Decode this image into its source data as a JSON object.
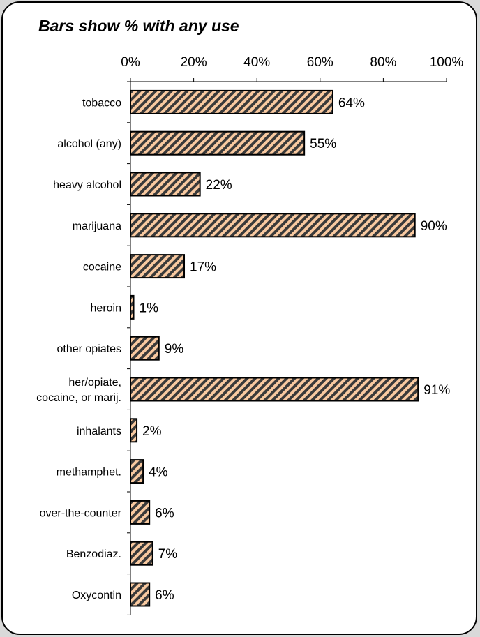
{
  "chart_data": {
    "type": "bar",
    "orientation": "horizontal",
    "title": "Bars show % with any use",
    "xlabel": "",
    "ylabel": "",
    "xlim": [
      0,
      100
    ],
    "x_ticks": [
      "0%",
      "20%",
      "40%",
      "60%",
      "80%",
      "100%"
    ],
    "x_tick_values": [
      0,
      20,
      40,
      60,
      80,
      100
    ],
    "categories": [
      [
        "tobacco"
      ],
      [
        "alcohol  (any)"
      ],
      [
        "heavy alcohol"
      ],
      [
        "marijuana"
      ],
      [
        "cocaine"
      ],
      [
        "heroin"
      ],
      [
        "other opiates"
      ],
      [
        "her/opiate,",
        "cocaine, or marij."
      ],
      [
        "inhalants"
      ],
      [
        "methamphet."
      ],
      [
        "over-the-counter"
      ],
      [
        "Benzodiaz."
      ],
      [
        "Oxycontin"
      ]
    ],
    "values": [
      64,
      55,
      22,
      90,
      17,
      1,
      9,
      91,
      2,
      4,
      6,
      7,
      6
    ],
    "data_labels": [
      "64%",
      "55%",
      "22%",
      "90%",
      "17%",
      "1%",
      "9%",
      "91%",
      "2%",
      "4%",
      "6%",
      "7%",
      "6%"
    ],
    "grid": false,
    "bar_fill": "#f8c9a0",
    "bar_stripe": "#3a3a3a",
    "bar_outline": "#000000"
  }
}
